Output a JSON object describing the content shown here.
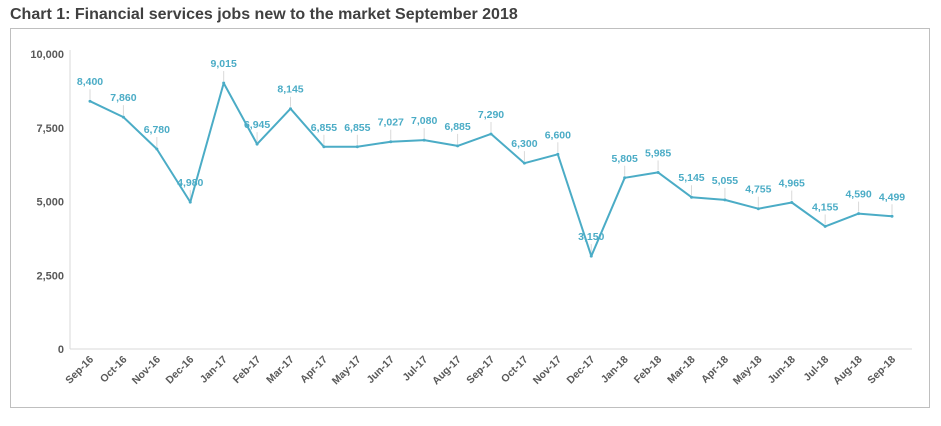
{
  "chart_data": {
    "type": "line",
    "title": "Chart 1: Financial services jobs new to the market September 2018",
    "xlabel": "",
    "ylabel": "",
    "ylim": [
      0,
      10000
    ],
    "yticks": [
      "0",
      "2,500",
      "5,000",
      "7,500",
      "10,000"
    ],
    "ytick_values": [
      0,
      2500,
      5000,
      7500,
      10000
    ],
    "grid": false,
    "legend": "none",
    "line_color": "#4bacc6",
    "categories": [
      "Sep-16",
      "Oct-16",
      "Nov-16",
      "Dec-16",
      "Jan-17",
      "Feb-17",
      "Mar-17",
      "Apr-17",
      "May-17",
      "Jun-17",
      "Jul-17",
      "Aug-17",
      "Sep-17",
      "Oct-17",
      "Nov-17",
      "Dec-17",
      "Jan-18",
      "Feb-18",
      "Mar-18",
      "Apr-18",
      "May-18",
      "Jun-18",
      "Jul-18",
      "Aug-18",
      "Sep-18"
    ],
    "series": [
      {
        "values": [
          8400,
          7860,
          6780,
          4980,
          9015,
          6945,
          8145,
          6855,
          6855,
          7027,
          7080,
          6885,
          7290,
          6300,
          6600,
          3150,
          5805,
          5985,
          5145,
          5055,
          4755,
          4965,
          4155,
          4590,
          4499
        ],
        "labels": [
          "8,400",
          "7,860",
          "6,780",
          "4,980",
          "9,015",
          "6,945",
          "8,145",
          "6,855",
          "6,855",
          "7,027",
          "7,080",
          "6,885",
          "7,290",
          "6,300",
          "6,600",
          "3,150",
          "5,805",
          "5,985",
          "5,145",
          "5,055",
          "4,755",
          "4,965",
          "4,155",
          "4,590",
          "4,499"
        ]
      }
    ]
  }
}
